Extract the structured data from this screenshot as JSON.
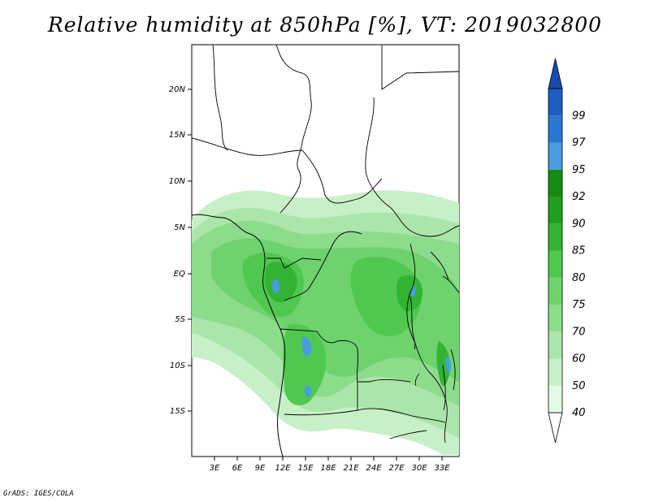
{
  "title": "Relative humidity at 850hPa [%], VT: 2019032800",
  "footer": "GrADS: IGES/COLA",
  "map": {
    "lon_range": [
      0,
      36
    ],
    "lat_range": [
      -20,
      25
    ],
    "lat_ticks": [
      "20N",
      "15N",
      "10N",
      "5N",
      "EQ",
      "5S",
      "10S",
      "15S"
    ],
    "lon_ticks": [
      "3E",
      "6E",
      "9E",
      "12E",
      "15E",
      "18E",
      "21E",
      "24E",
      "27E",
      "30E",
      "33E"
    ]
  },
  "colorbar": {
    "levels": [
      "40",
      "50",
      "60",
      "70",
      "75",
      "80",
      "85",
      "90",
      "92",
      "95",
      "97",
      "99"
    ],
    "colors": [
      "#ffffff",
      "#e6fae6",
      "#c8f0c8",
      "#aae6aa",
      "#8cdc8c",
      "#6ed26e",
      "#50c850",
      "#32b432",
      "#1ea01e",
      "#148c14",
      "#4a9ce0",
      "#2a78d4",
      "#1e5ec4",
      "#1a4ab0"
    ]
  }
}
